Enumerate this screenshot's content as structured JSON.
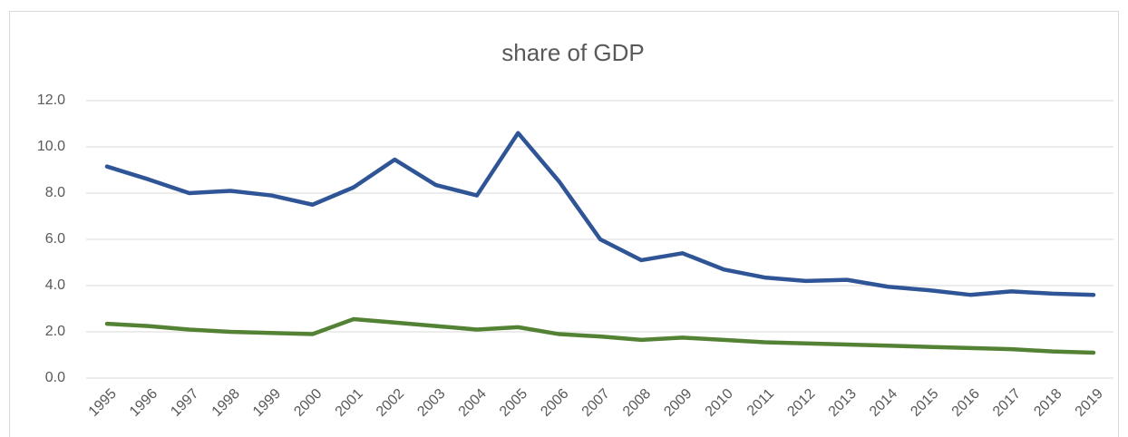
{
  "chart_data": {
    "type": "line",
    "title": "share of GDP",
    "categories": [
      "1995",
      "1996",
      "1997",
      "1998",
      "1999",
      "2000",
      "2001",
      "2002",
      "2003",
      "2004",
      "2005",
      "2006",
      "2007",
      "2008",
      "2009",
      "2010",
      "2011",
      "2012",
      "2013",
      "2014",
      "2015",
      "2016",
      "2017",
      "2018",
      "2019"
    ],
    "series": [
      {
        "color": "#2f5597",
        "values": [
          9.15,
          8.6,
          8.0,
          8.1,
          7.9,
          7.5,
          8.25,
          9.45,
          8.35,
          7.9,
          10.6,
          8.5,
          6.0,
          5.1,
          5.4,
          4.7,
          4.35,
          4.2,
          4.25,
          3.95,
          3.8,
          3.6,
          3.75,
          3.65,
          3.6
        ]
      },
      {
        "color": "#548235",
        "values": [
          2.35,
          2.25,
          2.1,
          2.0,
          1.95,
          1.9,
          2.55,
          2.4,
          2.25,
          2.1,
          2.2,
          1.9,
          1.8,
          1.65,
          1.75,
          1.65,
          1.55,
          1.5,
          1.45,
          1.4,
          1.35,
          1.3,
          1.25,
          1.15,
          1.1
        ]
      }
    ],
    "ylim": [
      0,
      12
    ],
    "yticks": [
      {
        "value": 0,
        "label": "0.0"
      },
      {
        "value": 2,
        "label": "2.0"
      },
      {
        "value": 4,
        "label": "4.0"
      },
      {
        "value": 6,
        "label": "6.0"
      },
      {
        "value": 8,
        "label": "8.0"
      },
      {
        "value": 10,
        "label": "10.0"
      },
      {
        "value": 12,
        "label": "12.0"
      }
    ],
    "grid": true
  }
}
